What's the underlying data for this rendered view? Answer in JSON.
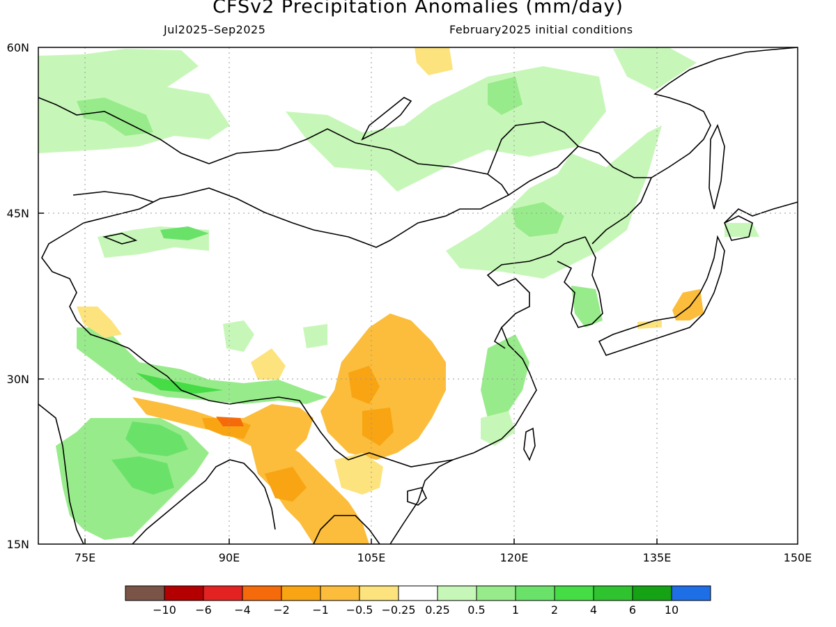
{
  "title": "CFSv2 Precipitation Anomalies (mm/day)",
  "subtitle_left": "Jul2025–Sep2025",
  "subtitle_right": "February2025 initial conditions",
  "lon_ticks": [
    "75E",
    "90E",
    "105E",
    "120E",
    "135E",
    "150E"
  ],
  "lat_ticks": [
    "60N",
    "45N",
    "30N",
    "15N"
  ],
  "colorbar": {
    "colors": [
      "#7a5547",
      "#b40000",
      "#e32222",
      "#f56a0a",
      "#f8a413",
      "#fbbd3b",
      "#fde37d",
      "#ffffff",
      "#c7f7b8",
      "#98eb8b",
      "#6ae26a",
      "#45dc45",
      "#2fc42f",
      "#15a315",
      "#1e6ee6"
    ],
    "labels": [
      "−10",
      "−6",
      "−4",
      "−2",
      "−1",
      "−0.5",
      "−0.25",
      "0.25",
      "0.5",
      "1",
      "2",
      "4",
      "6",
      "10"
    ]
  }
}
